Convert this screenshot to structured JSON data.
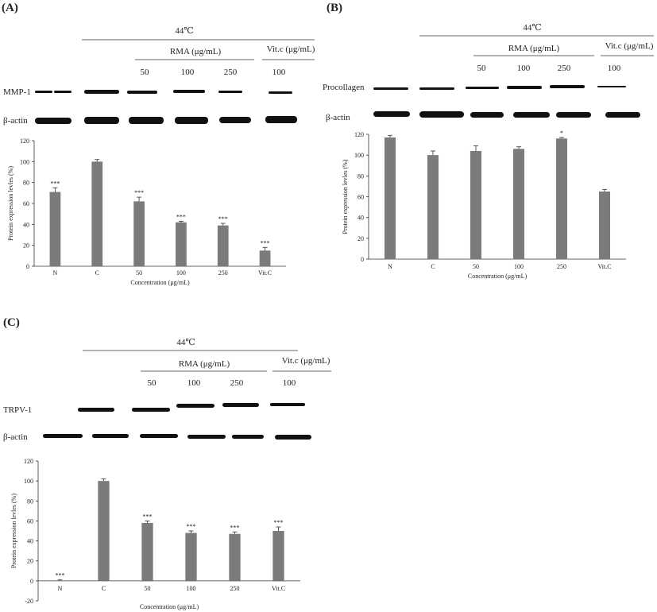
{
  "panels": [
    {
      "label": "(A)",
      "temp_header": "44℃",
      "rma_header": "RMA (μg/mL)",
      "vitc_header": "Vit.c (μg/mL)",
      "conc_labels": [
        "50",
        "100",
        "250",
        "100"
      ],
      "blot_labels": [
        "MMP-1",
        "β-actin"
      ]
    },
    {
      "label": "(B)",
      "temp_header": "44℃",
      "rma_header": "RMA (μg/mL)",
      "vitc_header": "Vit.c (μg/mL)",
      "conc_labels": [
        "50",
        "100",
        "250",
        "100"
      ],
      "blot_labels": [
        "Procollagen",
        "β-actin"
      ]
    },
    {
      "label": "(C)",
      "temp_header": "44℃",
      "rma_header": "RMA (μg/mL)",
      "vitc_header": "Vit.c (μg/mL)",
      "conc_labels": [
        "50",
        "100",
        "250",
        "100"
      ],
      "blot_labels": [
        "TRPV-1",
        "β-actin"
      ]
    }
  ],
  "chart_data": [
    {
      "type": "bar",
      "categories": [
        "N",
        "C",
        "50",
        "100",
        "250",
        "Vit.C"
      ],
      "values": [
        71,
        100,
        62,
        42,
        39,
        15
      ],
      "errors": [
        4,
        2,
        4,
        1,
        2,
        3
      ],
      "significance": [
        "***",
        "",
        "***",
        "***",
        "***",
        "***"
      ],
      "ylim": [
        0,
        120
      ],
      "yticks": [
        0,
        20,
        40,
        60,
        80,
        100,
        120
      ],
      "ylabel": "Protein expression levles (%)",
      "xlabel": "Concentration (μg/mL)",
      "colors": {
        "bar": "#7b7b7b"
      }
    },
    {
      "type": "bar",
      "categories": [
        "N",
        "C",
        "50",
        "100",
        "250",
        "Vit.C"
      ],
      "values": [
        117,
        100,
        104,
        106,
        116,
        65
      ],
      "errors": [
        2,
        4,
        5,
        2,
        1,
        2
      ],
      "significance": [
        "",
        "",
        "",
        "",
        "*",
        ""
      ],
      "ylim": [
        0,
        120
      ],
      "yticks": [
        0,
        20,
        40,
        60,
        80,
        100,
        120
      ],
      "ylabel": "Protein expression levles (%)",
      "xlabel": "Concentration (μg/mL)",
      "colors": {
        "bar": "#7b7b7b"
      }
    },
    {
      "type": "bar",
      "categories": [
        "N",
        "C",
        "50",
        "100",
        "250",
        "Vit.C"
      ],
      "values": [
        0,
        100,
        58,
        48,
        47,
        50
      ],
      "errors": [
        1,
        2,
        2,
        2,
        2,
        4
      ],
      "significance": [
        "***",
        "",
        "***",
        "***",
        "***",
        "***"
      ],
      "ylim": [
        -20,
        120
      ],
      "yticks": [
        -20,
        0,
        20,
        40,
        60,
        80,
        100,
        120
      ],
      "ylabel": "Protein expression levles (%)",
      "xlabel": "Concentration (μg/mL)",
      "colors": {
        "bar": "#7b7b7b"
      }
    }
  ]
}
